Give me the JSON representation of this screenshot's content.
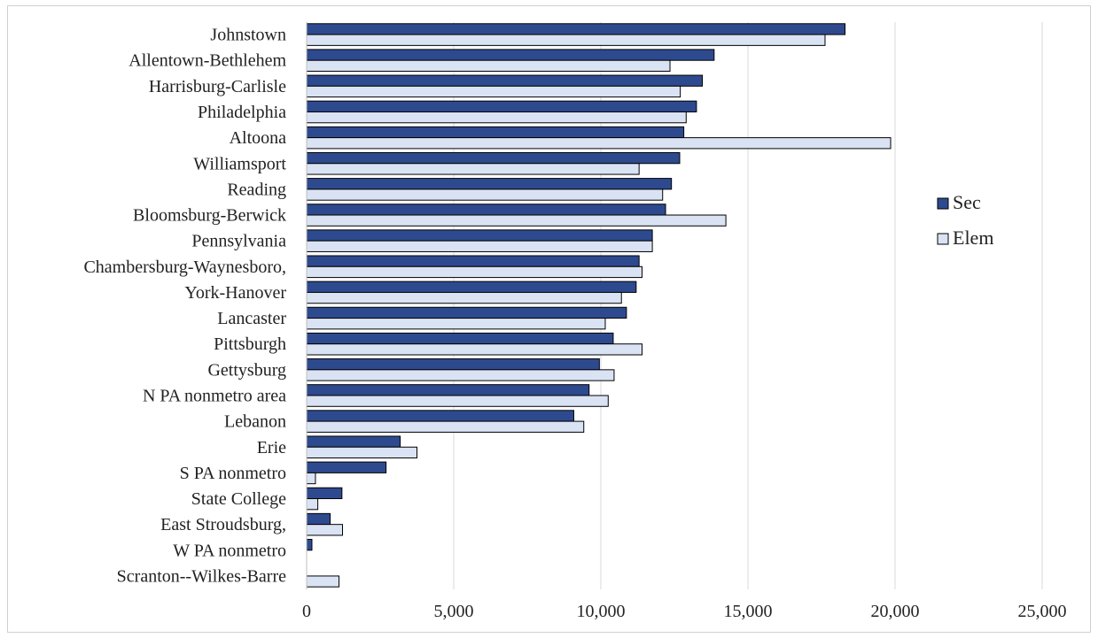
{
  "chart_data": {
    "type": "bar",
    "orientation": "horizontal",
    "categories": [
      "Johnstown",
      "Allentown-Bethlehem",
      "Harrisburg-Carlisle",
      "Philadelphia",
      "Altoona",
      "Williamsport",
      "Reading",
      "Bloomsburg-Berwick",
      "Pennsylvania",
      "Chambersburg-Waynesboro,",
      "York-Hanover",
      "Lancaster",
      "Pittsburgh",
      "Gettysburg",
      "N PA nonmetro area",
      "Lebanon",
      "Erie",
      "S PA nonmetro",
      "State College",
      "East Stroudsburg,",
      "W PA nonmetro",
      "Scranton--Wilkes-Barre"
    ],
    "series": [
      {
        "name": "Sec",
        "color": "#2e4a8f",
        "values": [
          18300,
          13850,
          13450,
          13250,
          12820,
          12680,
          12400,
          12200,
          11750,
          11300,
          11200,
          10870,
          10420,
          9950,
          9600,
          9080,
          3180,
          2700,
          1200,
          800,
          180,
          0
        ]
      },
      {
        "name": "Elem",
        "color": "#dae3f3",
        "values": [
          17620,
          12350,
          12700,
          12900,
          19850,
          11300,
          12100,
          14250,
          11750,
          11400,
          10700,
          10150,
          11400,
          10450,
          10250,
          9420,
          3750,
          300,
          380,
          1220,
          0,
          1100
        ]
      }
    ],
    "x_ticks": [
      "0",
      "5,000",
      "10,000",
      "15,000",
      "20,000",
      "25,000"
    ],
    "xlim": [
      0,
      25000
    ],
    "grid": true,
    "legend_position": "right"
  }
}
